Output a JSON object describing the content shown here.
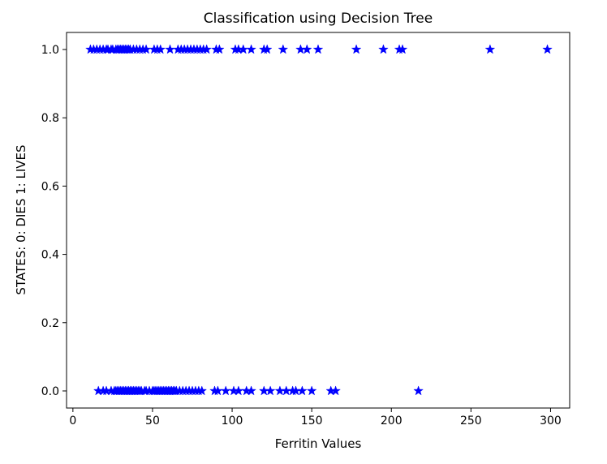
{
  "chart_data": {
    "type": "scatter",
    "title": "Classification using Decision Tree",
    "xlabel": "Ferritin Values",
    "ylabel": "STATES: 0: DIES 1: LIVES",
    "xlim": [
      -4,
      312
    ],
    "ylim": [
      -0.05,
      1.05
    ],
    "x_ticks": [
      "0",
      "50",
      "100",
      "150",
      "200",
      "250",
      "300"
    ],
    "x_tick_values": [
      0,
      50,
      100,
      150,
      200,
      250,
      300
    ],
    "y_ticks": [
      "0.0",
      "0.2",
      "0.4",
      "0.6",
      "0.8",
      "1.0"
    ],
    "y_tick_values": [
      0.0,
      0.2,
      0.4,
      0.6,
      0.8,
      1.0
    ],
    "grid": false,
    "marker": "star",
    "marker_color": "#0000ff",
    "series": [
      {
        "x": [
          11,
          13,
          15,
          17,
          19,
          21,
          22,
          24,
          25,
          27,
          28,
          29,
          30,
          31,
          32,
          33,
          34,
          35,
          36,
          38,
          40,
          42,
          44,
          46,
          51,
          53,
          55,
          61,
          66,
          68,
          70,
          72,
          74,
          76,
          78,
          80,
          82,
          84,
          90,
          92,
          102,
          104,
          107,
          112,
          120,
          122,
          132,
          143,
          147,
          154,
          178,
          195,
          205,
          207,
          262,
          298
        ],
        "y": [
          1,
          1,
          1,
          1,
          1,
          1,
          1,
          1,
          1,
          1,
          1,
          1,
          1,
          1,
          1,
          1,
          1,
          1,
          1,
          1,
          1,
          1,
          1,
          1,
          1,
          1,
          1,
          1,
          1,
          1,
          1,
          1,
          1,
          1,
          1,
          1,
          1,
          1,
          1,
          1,
          1,
          1,
          1,
          1,
          1,
          1,
          1,
          1,
          1,
          1,
          1,
          1,
          1,
          1,
          1,
          1
        ]
      },
      {
        "x": [
          16,
          19,
          21,
          24,
          26,
          27,
          28,
          29,
          30,
          31,
          32,
          33,
          34,
          35,
          36,
          37,
          38,
          39,
          40,
          41,
          42,
          43,
          45,
          46,
          48,
          50,
          51,
          52,
          53,
          54,
          55,
          56,
          57,
          58,
          59,
          60,
          61,
          62,
          63,
          64,
          65,
          67,
          69,
          71,
          73,
          75,
          77,
          79,
          81,
          89,
          91,
          96,
          101,
          104,
          109,
          112,
          120,
          124,
          130,
          134,
          138,
          140,
          144,
          150,
          162,
          165,
          217
        ],
        "y": [
          0,
          0,
          0,
          0,
          0,
          0,
          0,
          0,
          0,
          0,
          0,
          0,
          0,
          0,
          0,
          0,
          0,
          0,
          0,
          0,
          0,
          0,
          0,
          0,
          0,
          0,
          0,
          0,
          0,
          0,
          0,
          0,
          0,
          0,
          0,
          0,
          0,
          0,
          0,
          0,
          0,
          0,
          0,
          0,
          0,
          0,
          0,
          0,
          0,
          0,
          0,
          0,
          0,
          0,
          0,
          0,
          0,
          0,
          0,
          0,
          0,
          0,
          0,
          0,
          0,
          0,
          0
        ]
      }
    ]
  }
}
